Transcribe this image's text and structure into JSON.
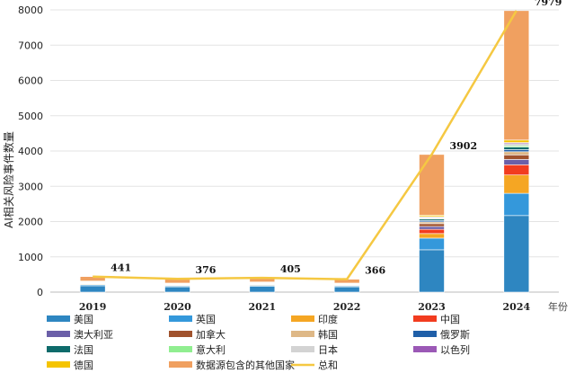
{
  "chart_data": {
    "type": "bar",
    "stacked": true,
    "categories": [
      "2019",
      "2020",
      "2021",
      "2022",
      "2023",
      "2024"
    ],
    "ylabel": "AI相关风险事件数量",
    "xlabel": "年份",
    "ylim": [
      0,
      8000
    ],
    "yticks": [
      0,
      1000,
      2000,
      3000,
      4000,
      5000,
      6000,
      7000,
      8000
    ],
    "grid": true,
    "legend_position": "bottom",
    "series": [
      {
        "name": "美国",
        "color": "#2e86c1",
        "values": [
          180,
          150,
          165,
          150,
          1200,
          2170
        ]
      },
      {
        "name": "英国",
        "color": "#3498db",
        "values": [
          30,
          25,
          28,
          25,
          330,
          630
        ]
      },
      {
        "name": "印度",
        "color": "#f5a623",
        "values": [
          20,
          15,
          18,
          15,
          130,
          520
        ]
      },
      {
        "name": "中国",
        "color": "#f23c1f",
        "values": [
          15,
          12,
          14,
          12,
          120,
          290
        ]
      },
      {
        "name": "澳大利亚",
        "color": "#6b5fa8",
        "values": [
          10,
          8,
          9,
          8,
          80,
          150
        ]
      },
      {
        "name": "加拿大",
        "color": "#a0522d",
        "values": [
          10,
          8,
          9,
          8,
          80,
          130
        ]
      },
      {
        "name": "韩国",
        "color": "#deb887",
        "values": [
          8,
          6,
          7,
          6,
          50,
          90
        ]
      },
      {
        "name": "俄罗斯",
        "color": "#1f5fa8",
        "values": [
          8,
          6,
          7,
          6,
          40,
          60
        ]
      },
      {
        "name": "法国",
        "color": "#0e6b6b",
        "values": [
          8,
          6,
          7,
          6,
          40,
          70
        ]
      },
      {
        "name": "意大利",
        "color": "#90ee90",
        "values": [
          5,
          4,
          5,
          4,
          20,
          40
        ]
      },
      {
        "name": "日本",
        "color": "#d3d3d3",
        "values": [
          8,
          6,
          7,
          6,
          30,
          60
        ]
      },
      {
        "name": "以色列",
        "color": "#9b59b6",
        "values": [
          5,
          4,
          5,
          4,
          20,
          30
        ]
      },
      {
        "name": "德国",
        "color": "#f5c400",
        "values": [
          8,
          6,
          7,
          6,
          40,
          70
        ]
      },
      {
        "name": "数据源包含的其他国家",
        "color": "#f0a060",
        "values": [
          126,
          120,
          117,
          110,
          1722,
          3669
        ]
      }
    ],
    "total": {
      "name": "总和",
      "color": "#f5c842",
      "values": [
        441,
        376,
        405,
        366,
        3902,
        7979
      ]
    }
  }
}
